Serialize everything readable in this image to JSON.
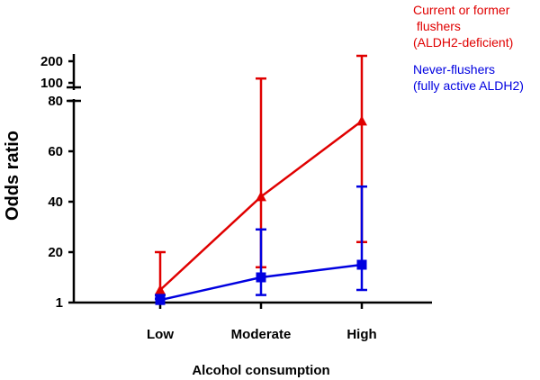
{
  "chart_data": {
    "type": "line",
    "xlabel": "Alcohol consumption",
    "ylabel": "Odds ratio",
    "categories": [
      "Low",
      "Moderate",
      "High"
    ],
    "y_ticks_lower": [
      "1",
      "20",
      "40",
      "60",
      "80"
    ],
    "y_ticks_upper": [
      "100",
      "200"
    ],
    "ylim_lower": [
      1,
      80
    ],
    "ylim_upper": [
      100,
      200
    ],
    "axis_break": true,
    "grid": false,
    "legend_placement": "top-right",
    "series": [
      {
        "legend_lines": [
          "Current or former",
          " flushers",
          "(ALDH2-deficient)"
        ],
        "color": "#e00000",
        "marker": "triangle",
        "values": [
          5,
          42,
          72
        ],
        "err_low": [
          1,
          14,
          24
        ],
        "err_high": [
          20,
          120,
          225
        ]
      },
      {
        "legend_lines": [
          "Never-flushers",
          "(fully active ALDH2)"
        ],
        "color": "#0000e0",
        "marker": "square",
        "values": [
          1,
          10,
          15
        ],
        "err_low": [
          1,
          3,
          5
        ],
        "err_high": [
          3,
          29,
          46
        ]
      }
    ]
  }
}
